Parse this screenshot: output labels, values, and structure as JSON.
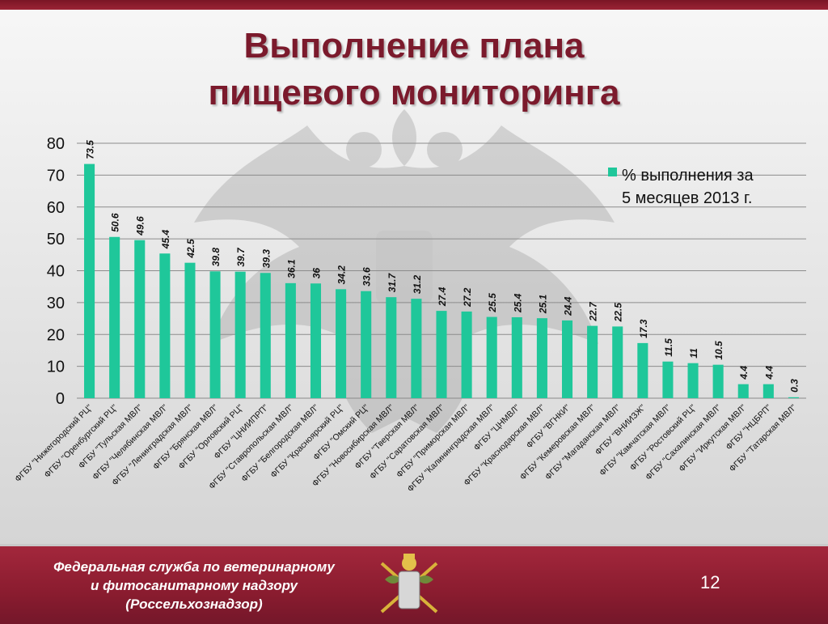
{
  "slide": {
    "title_line1": "Выполнение плана",
    "title_line2": "пищевого  мониторинга",
    "footer_line1": "Федеральная служба по ветеринарному",
    "footer_line2": "и фитосанитарному надзору",
    "footer_line3": "(Россельхознадзор)",
    "page_number": "12",
    "colors": {
      "bar": "#1fc79a",
      "title": "#7b1a2c",
      "footer": "#8a1c2f"
    }
  },
  "chart_data": {
    "type": "bar",
    "categories": [
      "ФГБУ \"Нижегородский РЦ\"",
      "ФГБУ \"Оренбургский РЦ\"",
      "ФГБУ \"Тульская МВЛ\"",
      "ФГБУ \"Челябинская МВЛ\"",
      "ФГБУ \"Ленинградская МВЛ\"",
      "ФГБУ \"Брянская МВЛ\"",
      "ФГБУ \"Орловский РЦ\"",
      "ФГБУ \"ЦНИИПРП\"",
      "ФГБУ \"Ставропольская МВЛ\"",
      "ФГБУ \"Белгородская МВЛ\"",
      "ФГБУ \"Красноярский РЦ\"",
      "ФГБУ \"Омский РЦ\"",
      "ФГБУ \"Новосибирская МВЛ\"",
      "ФГБУ \"Тверская МВЛ\"",
      "ФГБУ \"Саратовская МВЛ\"",
      "ФГБУ \"Приморская МВЛ\"",
      "ФГБУ \"Калининградская МВЛ\"",
      "ФГБУ \"ЦНМВЛ\"",
      "ФГБУ \"Краснодарская МВЛ\"",
      "ФГБУ \"ВГНКИ\"",
      "ФГБУ \"Кемеровская МВЛ\"",
      "ФГБУ \"Магаданская МВЛ\"",
      "ФГБУ \"ВНИИЗЖ\"",
      "ФГБУ \"Камчатская МВЛ\"",
      "ФГБУ \"Ростовский РЦ\"",
      "ФГБУ \"Сахалинская МВЛ\"",
      "ФГБУ \"Иркутская МВЛ\"",
      "ФГБУ \"НЦБРП\"",
      "ФГБУ \"Татарская МВЛ\""
    ],
    "values": [
      73.5,
      50.6,
      49.6,
      45.4,
      42.5,
      39.8,
      39.7,
      39.3,
      36.1,
      36,
      34.2,
      33.6,
      31.7,
      31.2,
      27.4,
      27.2,
      25.5,
      25.4,
      25.1,
      24.4,
      22.7,
      22.5,
      17.3,
      11.5,
      11,
      10.5,
      4.4,
      4.4,
      0.3
    ],
    "series_name": "% выполнения за 5 месяцев 2013 г.",
    "legend_line1": "% выполнения за",
    "legend_line2": "5 месяцев 2013 г.",
    "legend_position": "top-right",
    "ylim": [
      0,
      80
    ],
    "yticks": [
      0,
      10,
      20,
      30,
      40,
      50,
      60,
      70,
      80
    ],
    "grid": true
  }
}
